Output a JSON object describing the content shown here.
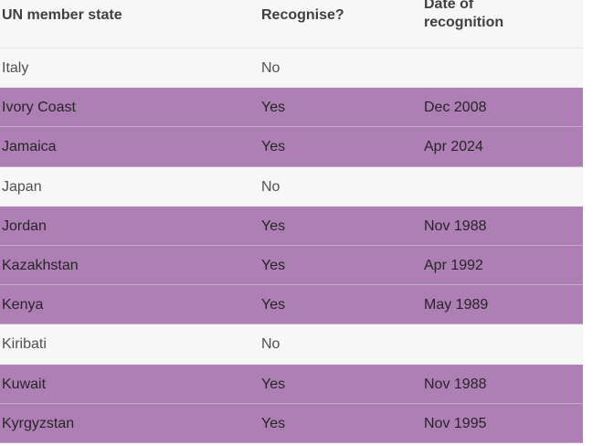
{
  "table": {
    "headers": [
      "UN member state",
      "Recognise?",
      "Date of\nrecognition"
    ],
    "rows": [
      {
        "state": "Italy",
        "recognise": "No",
        "date": ""
      },
      {
        "state": "Ivory Coast",
        "recognise": "Yes",
        "date": "Dec 2008"
      },
      {
        "state": "Jamaica",
        "recognise": "Yes",
        "date": "Apr 2024"
      },
      {
        "state": "Japan",
        "recognise": "No",
        "date": ""
      },
      {
        "state": "Jordan",
        "recognise": "Yes",
        "date": "Nov 1988"
      },
      {
        "state": "Kazakhstan",
        "recognise": "Yes",
        "date": "Apr 1992"
      },
      {
        "state": "Kenya",
        "recognise": "Yes",
        "date": "May 1989"
      },
      {
        "state": "Kiribati",
        "recognise": "No",
        "date": ""
      },
      {
        "state": "Kuwait",
        "recognise": "Yes",
        "date": "Nov 1988"
      },
      {
        "state": "Kyrgyzstan",
        "recognise": "Yes",
        "date": "Nov 1995"
      }
    ]
  },
  "colors": {
    "recognised_row": "#ae7fb5",
    "not_recognised_row": "#f7f7f7"
  }
}
